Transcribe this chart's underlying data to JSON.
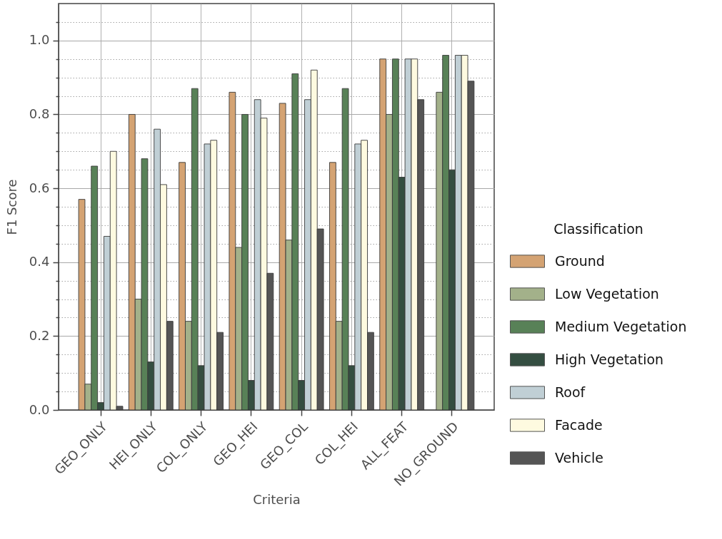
{
  "chart_data": {
    "type": "bar",
    "xlabel": "Criteria",
    "ylabel": "F1 Score",
    "legend_title": "Classification",
    "categories": [
      "GEO_ONLY",
      "HEI_ONLY",
      "COL_ONLY",
      "GEO_HEI",
      "GEO_COL",
      "COL_HEI",
      "ALL_FEAT",
      "NO_GROUND"
    ],
    "series": [
      {
        "name": "Ground",
        "color": "#d4a373",
        "values": [
          0.57,
          0.8,
          0.67,
          0.86,
          0.83,
          0.67,
          0.95,
          null
        ]
      },
      {
        "name": "Low Vegetation",
        "color": "#a3b18a",
        "values": [
          0.07,
          0.3,
          0.24,
          0.44,
          0.46,
          0.24,
          0.8,
          0.86
        ]
      },
      {
        "name": "Medium Vegetation",
        "color": "#588157",
        "values": [
          0.66,
          0.68,
          0.87,
          0.8,
          0.91,
          0.87,
          0.95,
          0.96
        ]
      },
      {
        "name": "High Vegetation",
        "color": "#344e41",
        "values": [
          0.02,
          0.13,
          0.12,
          0.08,
          0.08,
          0.12,
          0.63,
          0.65
        ]
      },
      {
        "name": "Roof",
        "color": "#c0cfd5",
        "values": [
          0.47,
          0.76,
          0.72,
          0.84,
          0.84,
          0.72,
          0.95,
          0.96
        ]
      },
      {
        "name": "Facade",
        "color": "#fefae0",
        "values": [
          0.7,
          0.61,
          0.73,
          0.79,
          0.92,
          0.73,
          0.95,
          0.96
        ]
      },
      {
        "name": "Vehicle",
        "color": "#555555",
        "values": [
          0.01,
          0.24,
          0.21,
          0.37,
          0.49,
          0.21,
          0.84,
          0.89
        ]
      }
    ],
    "ylim": [
      0,
      1.1
    ],
    "yticks": [
      {
        "value": 0,
        "label": "0.0"
      },
      {
        "value": 0.05,
        "label": null
      },
      {
        "value": 0.1,
        "label": null
      },
      {
        "value": 0.15,
        "label": null
      },
      0.2,
      {
        "value": 0.25,
        "label": null
      },
      {
        "value": 0.3,
        "label": null
      },
      {
        "value": 0.35,
        "label": null
      },
      0.4,
      {
        "value": 0.45,
        "label": null
      },
      {
        "value": 0.5,
        "label": null
      },
      {
        "value": 0.55,
        "label": null
      },
      0.6,
      {
        "value": 0.65,
        "label": null
      },
      {
        "value": 0.7,
        "label": null
      },
      {
        "value": 0.75,
        "label": null
      },
      0.8,
      {
        "value": 0.85,
        "label": null
      },
      {
        "value": 0.9,
        "label": null
      },
      {
        "value": 0.95,
        "label": null
      },
      {
        "value": 1,
        "label": "1.0"
      },
      {
        "value": 1.05,
        "label": null
      }
    ],
    "grid": true,
    "legend": "right"
  }
}
